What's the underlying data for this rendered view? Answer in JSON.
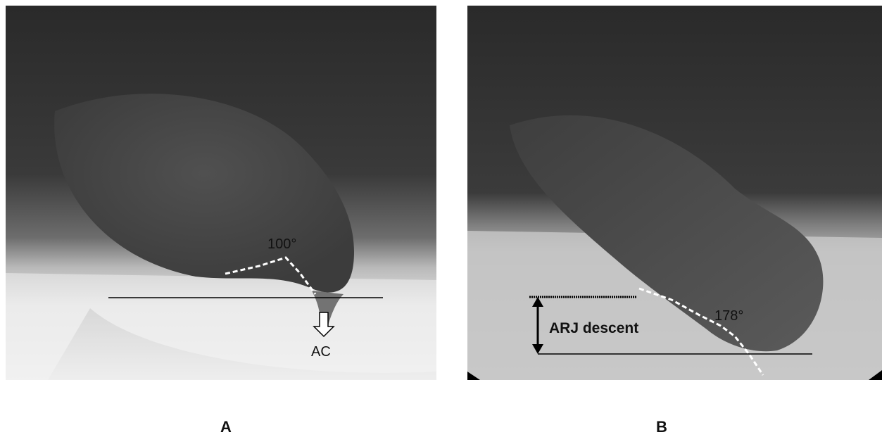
{
  "panel_a": {
    "caption": "A",
    "angle_label": "100°",
    "arrow_label": "AC"
  },
  "panel_b": {
    "caption": "B",
    "angle_label": "178°",
    "measure_label": "ARJ descent"
  },
  "colors": {
    "dashed_line": "#ffffff",
    "reference_line": "#000000",
    "text": "#111111"
  }
}
